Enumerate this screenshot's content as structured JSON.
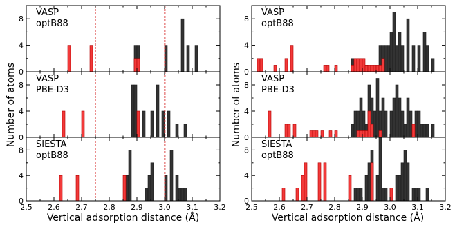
{
  "figure": {
    "ylabel": "Number of atoms",
    "xlabel": "Vertical adsorption distance (Å)"
  },
  "colors": {
    "dark": "#333333",
    "red": "#f23a3a",
    "red_edge": "#b20000",
    "refline": "#d42020"
  },
  "chart_data": [
    {
      "type": "bar",
      "panel": "left-top",
      "label_line1": "VASP",
      "label_line2": "optB88",
      "xlim": [
        2.5,
        3.2
      ],
      "ylim": [
        0,
        10
      ],
      "yticks": [
        0,
        4,
        8
      ],
      "xticks": [
        "2.5",
        "2.6",
        "2.7",
        "2.8",
        "2.9",
        "3.0",
        "3.1",
        "3.2"
      ],
      "show_xticklabels": false,
      "bin_width": 0.01,
      "ref_lines": [
        2.75,
        3.0,
        3.002
      ],
      "series": [
        {
          "color": "dark",
          "bars": [
            [
              2.89,
              4
            ],
            [
              2.9,
              4
            ],
            [
              3.0,
              4
            ],
            [
              3.06,
              8
            ],
            [
              3.08,
              4
            ],
            [
              3.11,
              4
            ]
          ]
        },
        {
          "color": "red",
          "bars": [
            [
              2.65,
              4
            ],
            [
              2.73,
              4
            ],
            [
              2.89,
              2
            ],
            [
              2.9,
              2
            ]
          ]
        }
      ]
    },
    {
      "type": "bar",
      "panel": "left-middle",
      "label_line1": "VASP",
      "label_line2": "PBE-D3",
      "xlim": [
        2.5,
        3.2
      ],
      "ylim": [
        0,
        10
      ],
      "yticks": [
        0,
        4,
        8
      ],
      "xticks": [
        "2.5",
        "2.6",
        "2.7",
        "2.8",
        "2.9",
        "3.0",
        "3.1",
        "3.2"
      ],
      "show_xticklabels": false,
      "bin_width": 0.01,
      "ref_lines": [
        2.75,
        3.0,
        3.002
      ],
      "series": [
        {
          "color": "dark",
          "bars": [
            [
              2.88,
              8
            ],
            [
              2.89,
              8
            ],
            [
              2.92,
              4
            ],
            [
              2.95,
              4
            ],
            [
              2.97,
              8
            ],
            [
              2.99,
              4
            ],
            [
              3.01,
              4
            ],
            [
              3.04,
              2
            ],
            [
              3.07,
              2
            ]
          ]
        },
        {
          "color": "red",
          "bars": [
            [
              2.63,
              4
            ],
            [
              2.7,
              4
            ],
            [
              2.9,
              4
            ]
          ]
        }
      ]
    },
    {
      "type": "bar",
      "panel": "left-bottom",
      "label_line1": "SIESTA",
      "label_line2": "optB88",
      "xlim": [
        2.5,
        3.2
      ],
      "ylim": [
        0,
        10
      ],
      "yticks": [
        0,
        4,
        8
      ],
      "xticks": [
        "2.5",
        "2.6",
        "2.7",
        "2.8",
        "2.9",
        "3.0",
        "3.1",
        "3.2"
      ],
      "show_xticklabels": true,
      "bin_width": 0.01,
      "ref_lines": [
        2.75,
        3.0,
        3.002
      ],
      "series": [
        {
          "color": "dark",
          "bars": [
            [
              2.86,
              4
            ],
            [
              2.87,
              8
            ],
            [
              2.93,
              2
            ],
            [
              2.94,
              4
            ],
            [
              2.95,
              6
            ],
            [
              3.0,
              4
            ],
            [
              3.02,
              8
            ],
            [
              3.04,
              4
            ],
            [
              3.05,
              2
            ],
            [
              3.06,
              2
            ],
            [
              3.07,
              2
            ]
          ]
        },
        {
          "color": "red",
          "bars": [
            [
              2.62,
              4
            ],
            [
              2.68,
              4
            ],
            [
              2.85,
              4
            ]
          ]
        }
      ]
    },
    {
      "type": "bar",
      "panel": "right-top",
      "label_line1": "VASP",
      "label_line2": "optB88",
      "xlim": [
        2.5,
        3.2
      ],
      "ylim": [
        0,
        10
      ],
      "yticks": [
        0,
        4,
        8
      ],
      "xticks": [
        "2.5",
        "2.6",
        "2.7",
        "2.8",
        "2.9",
        "3.0",
        "3.1",
        "3.2"
      ],
      "show_xticklabels": false,
      "bin_width": 0.01,
      "ref_lines": [],
      "series": [
        {
          "color": "dark",
          "bars": [
            [
              2.86,
              2
            ],
            [
              2.88,
              2
            ],
            [
              2.9,
              1
            ],
            [
              2.91,
              1
            ],
            [
              2.96,
              4
            ],
            [
              2.97,
              4
            ],
            [
              2.98,
              4
            ],
            [
              2.99,
              4
            ],
            [
              3.0,
              6
            ],
            [
              3.01,
              9
            ],
            [
              3.02,
              4
            ],
            [
              3.03,
              6
            ],
            [
              3.04,
              4
            ],
            [
              3.06,
              8
            ],
            [
              3.08,
              4
            ],
            [
              3.1,
              4
            ],
            [
              3.12,
              6
            ],
            [
              3.13,
              4
            ],
            [
              3.15,
              2
            ]
          ]
        },
        {
          "color": "red",
          "bars": [
            [
              2.52,
              2
            ],
            [
              2.53,
              2
            ],
            [
              2.58,
              1
            ],
            [
              2.62,
              2
            ],
            [
              2.64,
              4
            ],
            [
              2.76,
              1
            ],
            [
              2.77,
              1
            ],
            [
              2.8,
              1
            ],
            [
              2.86,
              1
            ],
            [
              2.87,
              2
            ],
            [
              2.88,
              2
            ],
            [
              2.89,
              2
            ],
            [
              2.9,
              2
            ],
            [
              2.91,
              1
            ],
            [
              2.92,
              1
            ],
            [
              2.93,
              1
            ],
            [
              2.94,
              1
            ],
            [
              2.95,
              1
            ],
            [
              2.96,
              1
            ],
            [
              2.97,
              2
            ]
          ]
        }
      ]
    },
    {
      "type": "bar",
      "panel": "right-middle",
      "label_line1": "VASP",
      "label_line2": "PBE-D3",
      "xlim": [
        2.5,
        3.2
      ],
      "ylim": [
        0,
        10
      ],
      "yticks": [
        0,
        4,
        8
      ],
      "xticks": [
        "2.5",
        "2.6",
        "2.7",
        "2.8",
        "2.9",
        "3.0",
        "3.1",
        "3.2"
      ],
      "show_xticklabels": false,
      "bin_width": 0.01,
      "ref_lines": [],
      "series": [
        {
          "color": "dark",
          "bars": [
            [
              2.86,
              2
            ],
            [
              2.87,
              4
            ],
            [
              2.88,
              4
            ],
            [
              2.89,
              6
            ],
            [
              2.9,
              4
            ],
            [
              2.91,
              2
            ],
            [
              2.92,
              8
            ],
            [
              2.93,
              6
            ],
            [
              2.94,
              4
            ],
            [
              2.95,
              9
            ],
            [
              2.96,
              4
            ],
            [
              2.97,
              6
            ],
            [
              2.98,
              4
            ],
            [
              3.0,
              4
            ],
            [
              3.01,
              6
            ],
            [
              3.02,
              8
            ],
            [
              3.03,
              6
            ],
            [
              3.04,
              4
            ],
            [
              3.05,
              2
            ],
            [
              3.06,
              6
            ],
            [
              3.07,
              4
            ],
            [
              3.08,
              2
            ],
            [
              3.09,
              4
            ],
            [
              3.1,
              4
            ],
            [
              3.11,
              2
            ],
            [
              3.12,
              2
            ],
            [
              3.13,
              2
            ],
            [
              3.15,
              2
            ]
          ]
        },
        {
          "color": "red",
          "bars": [
            [
              2.56,
              4
            ],
            [
              2.62,
              2
            ],
            [
              2.63,
              2
            ],
            [
              2.65,
              2
            ],
            [
              2.71,
              1
            ],
            [
              2.72,
              1
            ],
            [
              2.73,
              1
            ],
            [
              2.75,
              1
            ],
            [
              2.78,
              1
            ],
            [
              2.8,
              1
            ],
            [
              2.88,
              1
            ],
            [
              2.89,
              1
            ],
            [
              2.9,
              1
            ],
            [
              2.91,
              1
            ],
            [
              2.92,
              4
            ],
            [
              2.93,
              2
            ],
            [
              2.96,
              1
            ],
            [
              3.08,
              2
            ]
          ]
        }
      ]
    },
    {
      "type": "bar",
      "panel": "right-bottom",
      "label_line1": "SIESTA",
      "label_line2": "optB88",
      "xlim": [
        2.5,
        3.2
      ],
      "ylim": [
        0,
        10
      ],
      "yticks": [
        0,
        4,
        8
      ],
      "xticks": [
        "2.5",
        "2.6",
        "2.7",
        "2.8",
        "2.9",
        "3.0",
        "3.1",
        "3.2"
      ],
      "show_xticklabels": true,
      "bin_width": 0.01,
      "ref_lines": [],
      "series": [
        {
          "color": "dark",
          "bars": [
            [
              2.87,
              2
            ],
            [
              2.88,
              2
            ],
            [
              2.89,
              2
            ],
            [
              2.91,
              4
            ],
            [
              2.92,
              6
            ],
            [
              2.93,
              8
            ],
            [
              2.95,
              4
            ],
            [
              2.96,
              10
            ],
            [
              2.97,
              2
            ],
            [
              2.98,
              2
            ],
            [
              3.0,
              2
            ],
            [
              3.02,
              4
            ],
            [
              3.03,
              4
            ],
            [
              3.04,
              6
            ],
            [
              3.05,
              8
            ],
            [
              3.06,
              6
            ],
            [
              3.08,
              2
            ],
            [
              3.09,
              2
            ],
            [
              3.1,
              2
            ],
            [
              3.13,
              2
            ]
          ]
        },
        {
          "color": "red",
          "bars": [
            [
              2.61,
              2
            ],
            [
              2.66,
              2
            ],
            [
              2.68,
              4
            ],
            [
              2.69,
              6
            ],
            [
              2.74,
              6
            ],
            [
              2.76,
              6
            ],
            [
              2.85,
              4
            ],
            [
              2.93,
              6
            ],
            [
              3.0,
              2
            ]
          ]
        }
      ]
    }
  ]
}
